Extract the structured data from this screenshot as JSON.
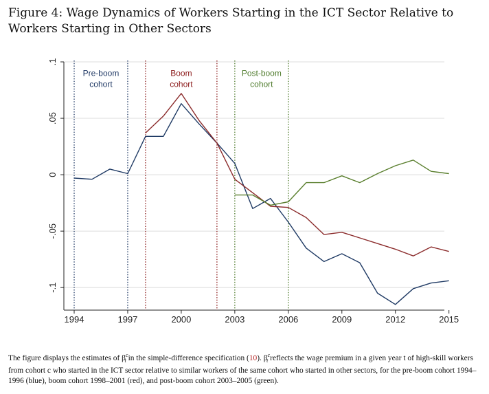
{
  "figure": {
    "title": "Figure 4: Wage Dynamics of Workers Starting in the ICT Sector Relative to Workers Starting in Other Sectors"
  },
  "caption": {
    "part1": "The figure displays the estimates of β",
    "beta_sup": "c",
    "beta_sub": "t",
    "part2": " in the simple-difference specification (",
    "ref": "10",
    "part3": "). β",
    "part4": " reflects the wage premium in a given year t of high-skill workers from cohort c who started in the ICT sector relative to similar workers of the same cohort who started in other sectors, for the pre-boom cohort 1994–1996 (blue), boom cohort 1998–2001 (red), and post-boom cohort 2003–2005 (green)."
  },
  "chart_data": {
    "type": "line",
    "title": "",
    "xlabel": "",
    "ylabel": "",
    "xlim": [
      1994,
      2015
    ],
    "ylim": [
      -0.12,
      0.1
    ],
    "x_ticks": [
      1994,
      1997,
      2000,
      2003,
      2006,
      2009,
      2012,
      2015
    ],
    "x_tick_labels": [
      "1994",
      "1997",
      "2000",
      "2003",
      "2006",
      "2009",
      "2012",
      "2015"
    ],
    "y_ticks": [
      -0.1,
      -0.05,
      0,
      0.05,
      0.1
    ],
    "y_tick_labels": [
      "-.1",
      "-.05",
      "0",
      ".05",
      ".1"
    ],
    "grid": true,
    "legend": "none",
    "cohort_markers": [
      {
        "year": 1994,
        "color": "#1f3864"
      },
      {
        "year": 1997,
        "color": "#1f3864"
      },
      {
        "year": 1998,
        "color": "#8b1a1a"
      },
      {
        "year": 2002,
        "color": "#8b1a1a"
      },
      {
        "year": 2003,
        "color": "#4d7a2a"
      },
      {
        "year": 2006,
        "color": "#4d7a2a"
      }
    ],
    "annotations": [
      {
        "text": [
          "Pre-boom",
          "cohort"
        ],
        "x": 1995.5,
        "y": 0.09,
        "color": "#1f3864"
      },
      {
        "text": [
          "Boom",
          "cohort"
        ],
        "x": 2000,
        "y": 0.09,
        "color": "#8b1a1a"
      },
      {
        "text": [
          "Post-boom",
          "cohort"
        ],
        "x": 2004.5,
        "y": 0.09,
        "color": "#4d7a2a"
      }
    ],
    "series": [
      {
        "color": "#1f3a64",
        "x": [
          1994,
          1995,
          1996,
          1997,
          1998,
          1999,
          2000,
          2001,
          2002,
          2003,
          2004,
          2005,
          2006,
          2007,
          2008,
          2009,
          2010,
          2011,
          2012,
          2013,
          2014,
          2015
        ],
        "values": [
          -0.003,
          -0.004,
          0.005,
          0.001,
          0.034,
          0.034,
          0.063,
          0.045,
          0.028,
          0.01,
          -0.03,
          -0.021,
          -0.042,
          -0.065,
          -0.077,
          -0.07,
          -0.078,
          -0.105,
          -0.115,
          -0.101,
          -0.096,
          -0.094
        ]
      },
      {
        "color": "#8b2b2b",
        "x": [
          1998,
          1999,
          2000,
          2001,
          2002,
          2003,
          2004,
          2005,
          2006,
          2007,
          2008,
          2009,
          2010,
          2011,
          2012,
          2013,
          2014,
          2015
        ],
        "values": [
          0.037,
          0.052,
          0.072,
          0.048,
          0.028,
          -0.004,
          -0.016,
          -0.028,
          -0.029,
          -0.038,
          -0.053,
          -0.051,
          -0.056,
          -0.061,
          -0.066,
          -0.072,
          -0.064,
          -0.068
        ]
      },
      {
        "color": "#5a7f2e",
        "x": [
          2003,
          2004,
          2005,
          2006,
          2007,
          2008,
          2009,
          2010,
          2011,
          2012,
          2013,
          2014,
          2015
        ],
        "values": [
          -0.018,
          -0.018,
          -0.027,
          -0.024,
          -0.007,
          -0.007,
          -0.001,
          -0.007,
          0.001,
          0.008,
          0.013,
          0.003,
          0.001
        ]
      }
    ]
  }
}
